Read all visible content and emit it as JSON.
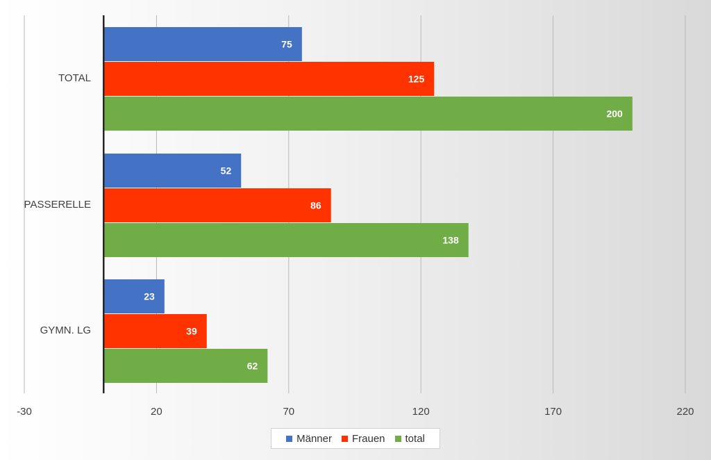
{
  "chart_data": {
    "type": "bar",
    "orientation": "horizontal",
    "categories": [
      "TOTAL",
      "PASSERELLE",
      "GYMN. LG"
    ],
    "series": [
      {
        "name": "Männer",
        "color": "#4472c4",
        "values": [
          75,
          52,
          23
        ]
      },
      {
        "name": "Frauen",
        "color": "#ff3300",
        "values": [
          125,
          86,
          39
        ]
      },
      {
        "name": "total",
        "color": "#70ad47",
        "values": [
          200,
          138,
          62
        ]
      }
    ],
    "xlim": [
      -30,
      220
    ],
    "xticks": [
      -30,
      20,
      70,
      120,
      170,
      220
    ],
    "grid": true,
    "legend": "bottom",
    "title": "",
    "xlabel": "",
    "ylabel": ""
  }
}
